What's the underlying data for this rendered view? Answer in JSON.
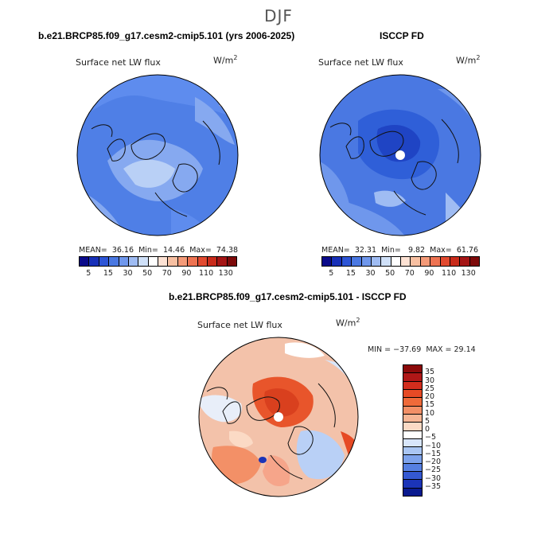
{
  "title": "DJF",
  "panels": {
    "model": {
      "header": "b.e21.BRCP85.f09_g17.cesm2-cmip5.101 (yrs 2006-2025)",
      "label": "Surface net LW flux",
      "units": "W/m",
      "units_sup": "2",
      "mean_label": "MEAN=",
      "mean": "36.16",
      "min_label": "Min=",
      "min": "14.46",
      "max_label": "Max=",
      "max": "74.38",
      "colorbar_ticks": [
        "5",
        "15",
        "30",
        "50",
        "70",
        "90",
        "110",
        "130"
      ],
      "map_palette": [
        "#4a78e2",
        "#5e8cee",
        "#86a9f0",
        "#b9d0f6"
      ]
    },
    "obs": {
      "header": "ISCCP FD",
      "label": "Surface net LW flux",
      "units": "W/m",
      "units_sup": "2",
      "mean_label": "MEAN=",
      "mean": "32.31",
      "min_label": "Min=",
      "min": "9.82",
      "max_label": "Max=",
      "max": "61.76",
      "colorbar_ticks": [
        "5",
        "15",
        "30",
        "50",
        "70",
        "90",
        "110",
        "130"
      ],
      "map_palette": [
        "#2f5fd8",
        "#4a78e2",
        "#6f97ec",
        "#9fbcf3"
      ]
    },
    "diff": {
      "header": "b.e21.BRCP85.f09_g17.cesm2-cmip5.101 - ISCCP FD",
      "label": "Surface net LW flux",
      "units": "W/m",
      "units_sup": "2",
      "min_text": "MIN = −37.69",
      "max_text": "MAX =  29.14",
      "colorbar_labels": [
        "35",
        "30",
        "25",
        "20",
        "15",
        "10",
        "5",
        "0",
        "−5",
        "−10",
        "−15",
        "−20",
        "−25",
        "−30",
        "−35"
      ],
      "map_palette": [
        "#f6a58a",
        "#f3c2aa",
        "#e8eef9",
        "#b9d0f6",
        "#e8552b"
      ]
    }
  },
  "colorbar_colors": [
    "#0a0a8a",
    "#1730b8",
    "#2d55d6",
    "#4a78e2",
    "#6f97ec",
    "#9fbcf3",
    "#cfe0f8",
    "#ffffff",
    "#fde2d4",
    "#f8c0a2",
    "#f49a78",
    "#ee7352",
    "#e24a30",
    "#c92b1b",
    "#a51515",
    "#7d0a0a"
  ],
  "diff_colorbar_colors": [
    "#8c0a0a",
    "#b01717",
    "#d22d1d",
    "#e64a25",
    "#ef6a3a",
    "#f39067",
    "#f7b695",
    "#fbdac5",
    "#ffffff",
    "#d8e6fb",
    "#aac6f3",
    "#7ea3ec",
    "#5680e2",
    "#3458d2",
    "#1b34b8",
    "#0a1a8f"
  ]
}
